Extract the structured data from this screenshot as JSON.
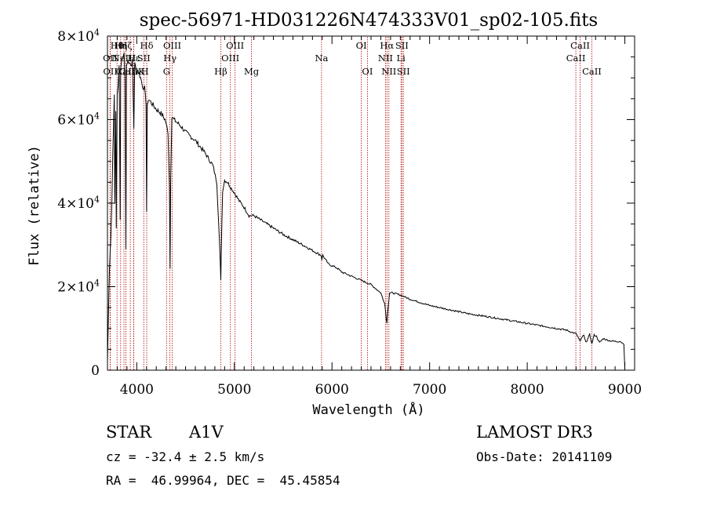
{
  "chart_data": {
    "type": "line",
    "title": "spec-56971-HD031226N474333V01_sp02-105.fits",
    "xlabel": "Wavelength (Å)",
    "ylabel": "Flux (relative)",
    "xlim": [
      3700,
      9100
    ],
    "ylim": [
      0,
      80000
    ],
    "x_ticks": [
      {
        "value": 4000,
        "label": "4000"
      },
      {
        "value": 5000,
        "label": "5000"
      },
      {
        "value": 6000,
        "label": "6000"
      },
      {
        "value": 7000,
        "label": "7000"
      },
      {
        "value": 8000,
        "label": "8000"
      },
      {
        "value": 9000,
        "label": "9000"
      }
    ],
    "y_ticks": [
      {
        "value": 0,
        "mantissa": "0",
        "exponent": ""
      },
      {
        "value": 20000,
        "mantissa": "2×10",
        "exponent": "4"
      },
      {
        "value": 40000,
        "mantissa": "4×10",
        "exponent": "4"
      },
      {
        "value": 60000,
        "mantissa": "6×10",
        "exponent": "4"
      },
      {
        "value": 80000,
        "mantissa": "8×10",
        "exponent": "4"
      }
    ],
    "series": [
      {
        "name": "spectrum",
        "x": [
          3700,
          3720,
          3735,
          3745,
          3755,
          3770,
          3775,
          3785,
          3790,
          3800,
          3810,
          3820,
          3830,
          3835,
          3845,
          3860,
          3870,
          3880,
          3889,
          3895,
          3910,
          3925,
          3940,
          3955,
          3970,
          3980,
          3995,
          4010,
          4040,
          4060,
          4080,
          4095,
          4101,
          4108,
          4120,
          4150,
          4200,
          4250,
          4290,
          4320,
          4335,
          4341,
          4348,
          4360,
          4380,
          4450,
          4500,
          4600,
          4700,
          4780,
          4820,
          4845,
          4855,
          4861,
          4867,
          4880,
          4900,
          4930,
          4970,
          5000,
          5050,
          5100,
          5150,
          5200,
          5300,
          5500,
          5700,
          5850,
          5890,
          5895,
          5905,
          5960,
          6000,
          6050,
          6100,
          6150,
          6200,
          6300,
          6400,
          6500,
          6540,
          6555,
          6563,
          6570,
          6590,
          6620,
          6700,
          6800,
          7000,
          7200,
          7400,
          7600,
          7800,
          8000,
          8200,
          8400,
          8500,
          8520,
          8542,
          8560,
          8580,
          8600,
          8640,
          8662,
          8685,
          8710,
          8740,
          8780,
          8820,
          8860,
          8900,
          8950,
          8990,
          9000
        ],
        "values": [
          2000,
          24000,
          32000,
          40000,
          52000,
          66000,
          40000,
          62000,
          34000,
          66000,
          68000,
          73000,
          36000,
          72000,
          74000,
          75000,
          76000,
          70000,
          29000,
          73000,
          74000,
          74000,
          73000,
          74000,
          58000,
          74000,
          71000,
          72000,
          70000,
          68000,
          67500,
          64000,
          38000,
          63000,
          65000,
          64000,
          62500,
          61500,
          60000,
          57000,
          44000,
          24500,
          46000,
          60500,
          60000,
          58500,
          57000,
          55000,
          52000,
          49000,
          45000,
          32000,
          26000,
          21500,
          30000,
          43000,
          45500,
          45000,
          43500,
          42500,
          40500,
          39000,
          37000,
          37000,
          35500,
          32500,
          30000,
          28000,
          27500,
          26500,
          27500,
          25500,
          25000,
          24500,
          23500,
          23000,
          22500,
          21500,
          20500,
          18500,
          16000,
          12500,
          11200,
          14000,
          18500,
          18500,
          18000,
          17000,
          15500,
          14500,
          13500,
          12800,
          12000,
          11200,
          10400,
          9600,
          8700,
          8000,
          6800,
          7900,
          8300,
          6600,
          8500,
          6300,
          8400,
          8100,
          6600,
          7600,
          7200,
          7000,
          6900,
          6900,
          6200,
          0
        ]
      }
    ],
    "line_markers": [
      {
        "name": "OII",
        "wavelength": 3727,
        "row": 2
      },
      {
        "name": "OII",
        "wavelength": 3729,
        "row": 3
      },
      {
        "name": "Hθ",
        "wavelength": 3798,
        "row": 1
      },
      {
        "name": "Hη",
        "wavelength": 3835,
        "row": 1
      },
      {
        "name": "Hζ",
        "wavelength": 3889,
        "row": 1
      },
      {
        "name": "NeIII",
        "wavelength": 3869,
        "row": 2
      },
      {
        "name": "CaII K",
        "wavelength": 3934,
        "row": 3
      },
      {
        "name": "CaII H",
        "wavelength": 3969,
        "row": 3
      },
      {
        "name": "Hε",
        "wavelength": 3970,
        "row": 2
      },
      {
        "name": "SII",
        "wavelength": 4072,
        "row": 2
      },
      {
        "name": "Hδ",
        "wavelength": 4102,
        "row": 1
      },
      {
        "name": "OIII",
        "wavelength": 4363,
        "row": 1
      },
      {
        "name": "Hγ",
        "wavelength": 4340,
        "row": 2
      },
      {
        "name": "G",
        "wavelength": 4305,
        "row": 3
      },
      {
        "name": "Hβ",
        "wavelength": 4861,
        "row": 3
      },
      {
        "name": "OIII",
        "wavelength": 4959,
        "row": 2
      },
      {
        "name": "OIII",
        "wavelength": 5007,
        "row": 1
      },
      {
        "name": "Mg",
        "wavelength": 5175,
        "row": 3
      },
      {
        "name": "Na",
        "wavelength": 5893,
        "row": 2
      },
      {
        "name": "OI",
        "wavelength": 6300,
        "row": 1
      },
      {
        "name": "OI",
        "wavelength": 6363,
        "row": 3
      },
      {
        "name": "NII",
        "wavelength": 6548,
        "row": 2
      },
      {
        "name": "Hα",
        "wavelength": 6563,
        "row": 1
      },
      {
        "name": "NII",
        "wavelength": 6583,
        "row": 3
      },
      {
        "name": "Li",
        "wavelength": 6707,
        "row": 2
      },
      {
        "name": "SII",
        "wavelength": 6716,
        "row": 1
      },
      {
        "name": "SII",
        "wavelength": 6731,
        "row": 3
      },
      {
        "name": "CaII",
        "wavelength": 8498,
        "row": 2
      },
      {
        "name": "CaII",
        "wavelength": 8542,
        "row": 1
      },
      {
        "name": "CaII",
        "wavelength": 8662,
        "row": 3
      }
    ]
  },
  "info": {
    "object_class": "STAR",
    "subclass": "A1V",
    "survey": "LAMOST DR3",
    "redshift_text": "cz = -32.4 ± 2.5 km/s",
    "obs_date_text": "Obs-Date: 20141109",
    "coords_text": "RA =  46.99964, DEC =  45.45854"
  },
  "colors": {
    "axis": "#000000",
    "spectrum": "#000000",
    "marker_line": "#b00000"
  }
}
